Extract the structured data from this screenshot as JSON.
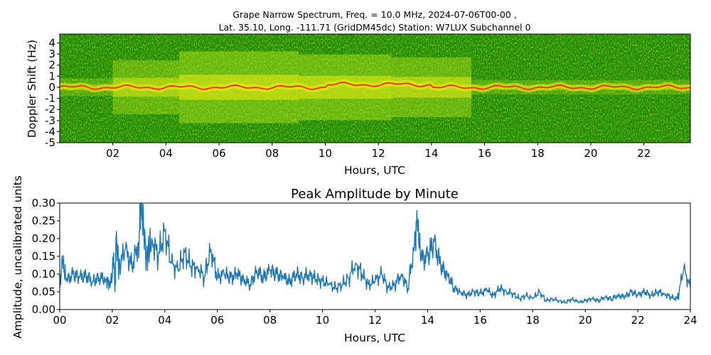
{
  "chart_data": [
    {
      "type": "heatmap",
      "title": "Grape Narrow Spectrum, Freq. = 10.0 MHz, 2024-07-06T00-00 ,",
      "subtitle": "Lat.  35.10, Long. -111.71 (GridDM45dc) Station: W7LUX Subchannel 0",
      "xlabel": "Hours, UTC",
      "ylabel": "Doppler Shift (Hz)",
      "x_ticks": [
        "02",
        "04",
        "06",
        "08",
        "10",
        "12",
        "14",
        "16",
        "18",
        "20",
        "22"
      ],
      "y_ticks": [
        "4",
        "3",
        "2",
        "1",
        "0",
        "-1",
        "-2",
        "-3",
        "-4",
        "-5"
      ],
      "xlim": [
        0,
        23.75
      ],
      "ylim": [
        -5,
        4.8
      ],
      "colors": {
        "background": "#1f8a00",
        "mid": "#8ccc12",
        "high": "#f2ee10",
        "peak": "#ff2a00"
      },
      "activity": [
        {
          "x": [
            0,
            2
          ],
          "level": 0.15
        },
        {
          "x": [
            2,
            4.5
          ],
          "level": 0.45
        },
        {
          "x": [
            4.5,
            9
          ],
          "level": 0.6
        },
        {
          "x": [
            9,
            12.5
          ],
          "level": 0.55
        },
        {
          "x": [
            12.5,
            15.5
          ],
          "level": 0.5
        },
        {
          "x": [
            15.5,
            23.75
          ],
          "level": 0.12
        }
      ]
    },
    {
      "type": "line",
      "title": "Peak Amplitude by Minute",
      "xlabel": "Hours, UTC",
      "ylabel": "Amplitude, uncalibrated units",
      "x_ticks": [
        "00",
        "02",
        "04",
        "06",
        "08",
        "10",
        "12",
        "14",
        "16",
        "18",
        "20",
        "22",
        "24"
      ],
      "y_ticks": [
        "0.00",
        "0.05",
        "0.10",
        "0.15",
        "0.20",
        "0.25",
        "0.30"
      ],
      "xlim": [
        0,
        24
      ],
      "ylim": [
        0,
        0.3
      ],
      "line_color": "#1f77b4",
      "series": [
        {
          "x": [
            0,
            0.1,
            0.25,
            0.5,
            0.75,
            1,
            1.25,
            1.5,
            1.75,
            1.9,
            2,
            2.05,
            2.1,
            2.15,
            2.25,
            2.5,
            2.75,
            3,
            3.1,
            3.2,
            3.3,
            3.5,
            3.75,
            4,
            4.25,
            4.5,
            4.75,
            5,
            5.25,
            5.5,
            5.75,
            6,
            6.25,
            6.5,
            6.75,
            7,
            7.25,
            7.5,
            7.75,
            8,
            8.25,
            8.5,
            8.75,
            9,
            9.25,
            9.5,
            9.75,
            10,
            10.25,
            10.5,
            10.75,
            11,
            11.25,
            11.5,
            11.75,
            12,
            12.25,
            12.5,
            12.75,
            13,
            13.25,
            13.5,
            13.6,
            13.75,
            14,
            14.25,
            14.5,
            14.75,
            15,
            15.25,
            15.5,
            15.75,
            16,
            16.25,
            16.5,
            16.75,
            17,
            17.25,
            17.5,
            17.75,
            18,
            18.25,
            18.5,
            18.75,
            19,
            19.25,
            19.5,
            19.75,
            20,
            20.25,
            20.5,
            20.75,
            21,
            21.25,
            21.5,
            21.75,
            22,
            22.25,
            22.5,
            22.75,
            23,
            23.25,
            23.5,
            23.75,
            24
          ],
          "values": [
            0.06,
            0.14,
            0.08,
            0.1,
            0.09,
            0.095,
            0.08,
            0.09,
            0.085,
            0.075,
            0.09,
            0.16,
            0.05,
            0.21,
            0.12,
            0.17,
            0.12,
            0.19,
            0.3,
            0.23,
            0.14,
            0.2,
            0.15,
            0.22,
            0.13,
            0.11,
            0.16,
            0.12,
            0.12,
            0.09,
            0.17,
            0.09,
            0.1,
            0.09,
            0.1,
            0.085,
            0.07,
            0.11,
            0.09,
            0.11,
            0.1,
            0.09,
            0.08,
            0.1,
            0.09,
            0.1,
            0.085,
            0.08,
            0.07,
            0.06,
            0.07,
            0.09,
            0.13,
            0.1,
            0.07,
            0.08,
            0.1,
            0.06,
            0.07,
            0.1,
            0.06,
            0.18,
            0.25,
            0.14,
            0.15,
            0.19,
            0.12,
            0.1,
            0.06,
            0.05,
            0.04,
            0.05,
            0.045,
            0.055,
            0.04,
            0.06,
            0.05,
            0.045,
            0.03,
            0.04,
            0.03,
            0.05,
            0.025,
            0.03,
            0.025,
            0.02,
            0.03,
            0.02,
            0.025,
            0.03,
            0.025,
            0.035,
            0.03,
            0.04,
            0.035,
            0.05,
            0.04,
            0.05,
            0.04,
            0.05,
            0.045,
            0.035,
            0.03,
            0.115,
            0.06
          ]
        }
      ]
    }
  ]
}
